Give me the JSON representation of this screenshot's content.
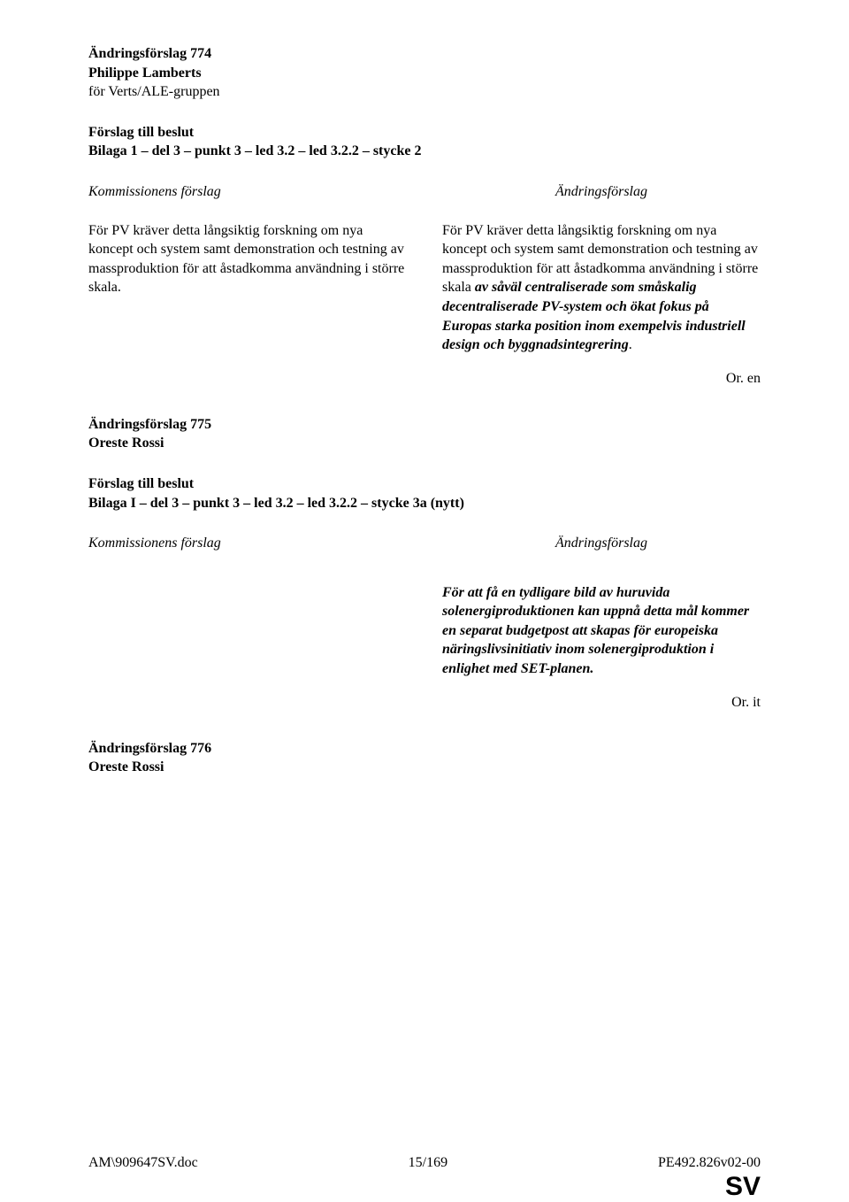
{
  "amendment774": {
    "number": "774",
    "title_prefix": "Ändringsförslag",
    "author": "Philippe Lamberts",
    "group": "för Verts/ALE-gruppen",
    "proposal_label": "Förslag till beslut",
    "proposal_ref": "Bilaga 1 – del 3 – punkt 3 – led 3.2 – led 3.2.2 – stycke 2",
    "left_header": "Kommissionens förslag",
    "right_header": "Ändringsförslag",
    "left_body": "För PV kräver detta långsiktig forskning om nya koncept och system samt demonstration och testning av massproduktion för att åstadkomma användning i större skala.",
    "right_body_plain": "För PV kräver detta långsiktig forskning om nya koncept och system samt demonstration och testning av massproduktion för att åstadkomma användning i större skala",
    "right_body_italic": " av såväl centraliserade som småskalig decentraliserade PV-system och ökat fokus på Europas starka position inom exempelvis industriell design och byggnadsintegrering",
    "right_body_end": ".",
    "lang": "Or. en"
  },
  "amendment775": {
    "number": "775",
    "title_prefix": "Ändringsförslag",
    "author": "Oreste Rossi",
    "proposal_label": "Förslag till beslut",
    "proposal_ref": "Bilaga I – del 3 – punkt 3 – led 3.2 – led 3.2.2 – stycke 3a (nytt)",
    "left_header": "Kommissionens förslag",
    "right_header": "Ändringsförslag",
    "right_body": "För att få en tydligare bild av huruvida solenergiproduktionen kan uppnå detta mål kommer en separat budgetpost att skapas för europeiska näringslivsinitiativ inom solenergiproduktion i enlighet med SET-planen.",
    "lang": "Or. it"
  },
  "amendment776": {
    "number": "776",
    "title_prefix": "Ändringsförslag",
    "author": "Oreste Rossi"
  },
  "footer": {
    "left": "AM\\909647SV.doc",
    "center": "15/169",
    "right": "PE492.826v02-00",
    "lang": "SV"
  }
}
